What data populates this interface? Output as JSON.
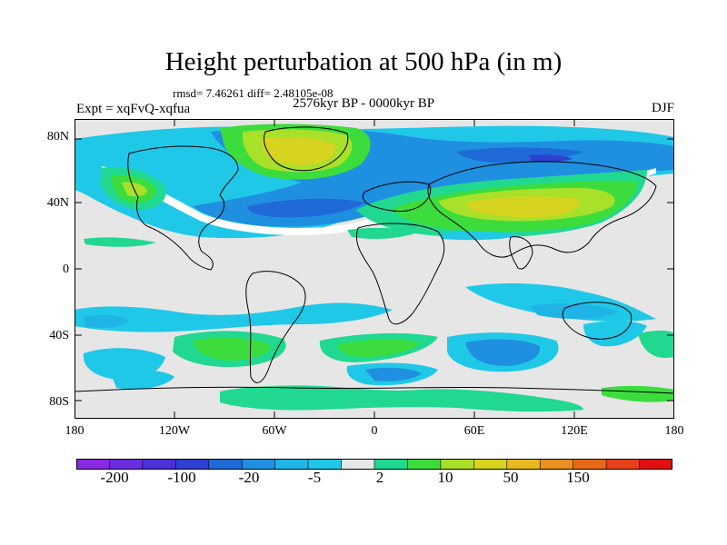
{
  "title": "Height perturbation at 500 hPa (in m)",
  "stats": "rmsd= 7.46261 diff= 2.48105e-08",
  "period": "2576kyr BP - 0000kyr BP",
  "experiment": "Expt = xqFvQ-xqfua",
  "season": "DJF",
  "lat_labels": [
    "80N",
    "40N",
    "0",
    "40S",
    "80S"
  ],
  "lon_labels": [
    "180",
    "120W",
    "60W",
    "0",
    "60E",
    "120E",
    "180"
  ],
  "colorbar": {
    "colors": [
      "#8a2be2",
      "#6a2ee0",
      "#4b2fd8",
      "#2f3fd0",
      "#1f6ad8",
      "#1f8fe0",
      "#1fb4e6",
      "#20c8e8",
      "#e6e6e6",
      "#20d890",
      "#3ddc3d",
      "#a8e02a",
      "#d6d41e",
      "#e8b81e",
      "#e89020",
      "#e86818",
      "#e84018",
      "#e01010"
    ],
    "labels": [
      "-200",
      "-100",
      "-20",
      "-5",
      "2",
      "10",
      "50",
      "150"
    ]
  }
}
